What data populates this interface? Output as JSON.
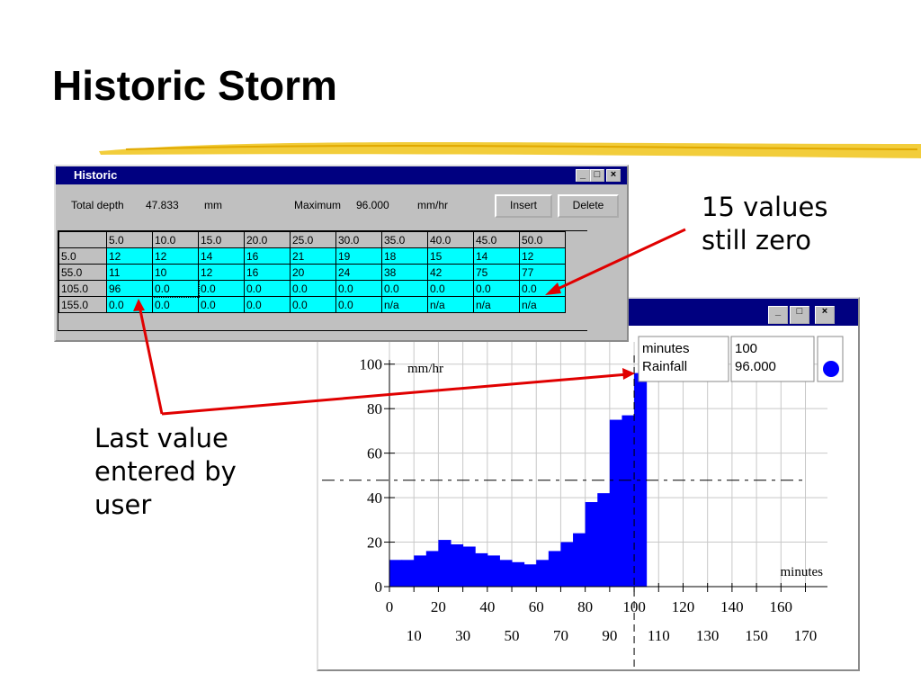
{
  "title": "Historic Storm",
  "annotations": [
    [
      "15 values",
      "still zero"
    ],
    [
      "Last value",
      "entered by",
      "user"
    ]
  ],
  "historic_window": {
    "title": "Historic",
    "total_depth_label": "Total depth",
    "total_depth": "47.833",
    "depth_unit": "mm",
    "maximum_label": "Maximum",
    "maximum": "96.000",
    "maximum_unit": "mm/hr",
    "buttons": [
      "Insert",
      "Delete"
    ],
    "table": {
      "header": [
        "5.0",
        "10.0",
        "15.0",
        "20.0",
        "25.0",
        "30.0",
        "35.0",
        "40.0",
        "45.0",
        "50.0"
      ],
      "row_labels": [
        "5.0",
        "55.0",
        "105.0",
        "155.0"
      ],
      "rows": [
        [
          "12",
          "12",
          "14",
          "16",
          "21",
          "19",
          "18",
          "15",
          "14",
          "12"
        ],
        [
          "11",
          "10",
          "12",
          "16",
          "20",
          "24",
          "38",
          "42",
          "75",
          "77"
        ],
        [
          "96",
          "0.0",
          "0.0",
          "0.0",
          "0.0",
          "0.0",
          "0.0",
          "0.0",
          "0.0",
          "0.0"
        ],
        [
          "0.0",
          "0.0",
          "0.0",
          "0.0",
          "0.0",
          "0.0",
          "n/a",
          "n/a",
          "n/a",
          "n/a"
        ]
      ]
    }
  },
  "chart_data": {
    "type": "histogram",
    "y_label": "mm/hr",
    "x_label": "minutes",
    "bins": [
      0,
      5,
      10,
      15,
      20,
      25,
      30,
      35,
      40,
      45,
      50,
      55,
      60,
      65,
      70,
      75,
      80,
      85,
      90,
      95,
      100,
      105
    ],
    "values": [
      12,
      12,
      14,
      16,
      21,
      19,
      18,
      15,
      14,
      12,
      11,
      10,
      12,
      16,
      20,
      24,
      38,
      42,
      75,
      77,
      96
    ],
    "color": "#0000ff",
    "xlim": [
      0,
      179
    ],
    "ylim": [
      0,
      110
    ],
    "xticks": [
      0,
      10,
      20,
      30,
      40,
      50,
      60,
      70,
      80,
      90,
      100,
      110,
      120,
      130,
      140,
      150,
      160,
      170
    ],
    "yticks": [
      0,
      20,
      40,
      60,
      80,
      100
    ],
    "grid": true,
    "legend": {
      "rows": [
        [
          "minutes",
          "100"
        ],
        [
          "Rainfall",
          "96.000"
        ]
      ]
    }
  }
}
